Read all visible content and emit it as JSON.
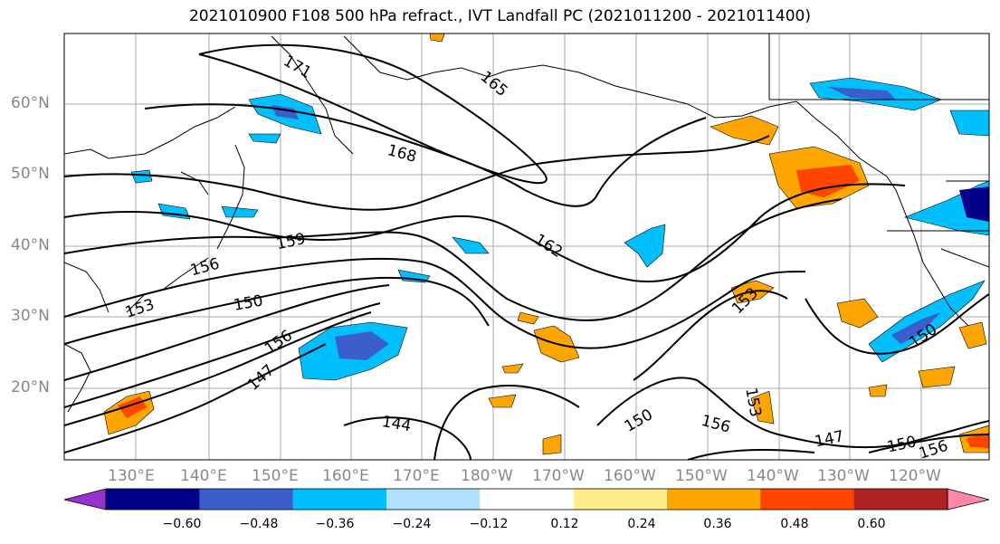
{
  "title": "2021010900 F108 500 hPa refract., IVT Landfall PC (2021011200 - 2021011400)",
  "lat_labels": [
    "60°N",
    "50°N",
    "40°N",
    "30°N",
    "20°N"
  ],
  "lon_labels": [
    "130°E",
    "140°E",
    "150°E",
    "160°E",
    "170°E",
    "180°W",
    "170°W",
    "160°W",
    "150°W",
    "140°W",
    "130°W",
    "120°W"
  ],
  "contour_labels": [
    "171",
    "165",
    "168",
    "162",
    "159",
    "156",
    "153",
    "150",
    "147",
    "144",
    "153",
    "150",
    "156",
    "156",
    "147",
    "150",
    "156",
    "150",
    "153"
  ],
  "colorbar": {
    "ticks": [
      "−0.60",
      "−0.48",
      "−0.36",
      "−0.24",
      "−0.12",
      "0.12",
      "0.24",
      "0.36",
      "0.48",
      "0.60"
    ],
    "colors": [
      "#9932cc",
      "#00008b",
      "#3a5fcd",
      "#00bfff",
      "#b0e2ff",
      "#ffffff",
      "#ffec8b",
      "#ffa500",
      "#ff4500",
      "#b22222",
      "#ff88aa"
    ]
  }
}
